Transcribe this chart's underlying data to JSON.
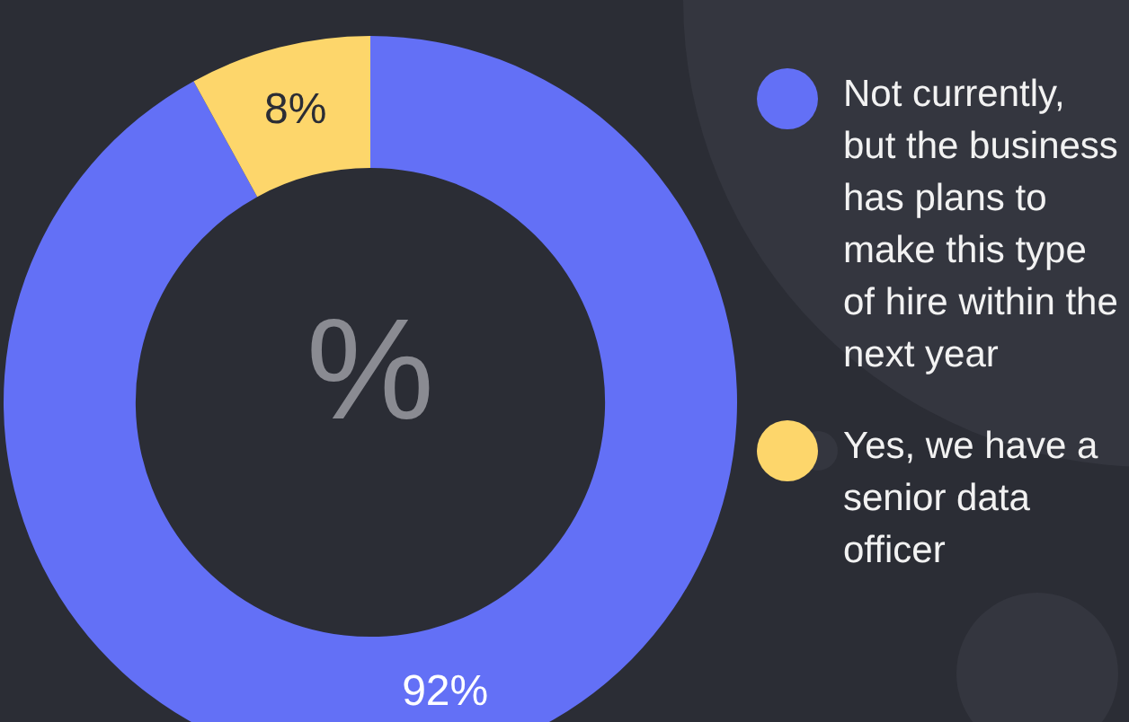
{
  "chart_data": {
    "type": "donut",
    "categories": [
      "Not currently, but the business has plans to make this type of hire within the next year",
      "Yes, we have a senior data officer"
    ],
    "values": [
      92,
      8
    ],
    "colors": [
      "#6370f6",
      "#fdd66b"
    ],
    "value_labels": [
      "92%",
      "8%"
    ],
    "legend": "right",
    "annotations": [
      "%"
    ]
  }
}
